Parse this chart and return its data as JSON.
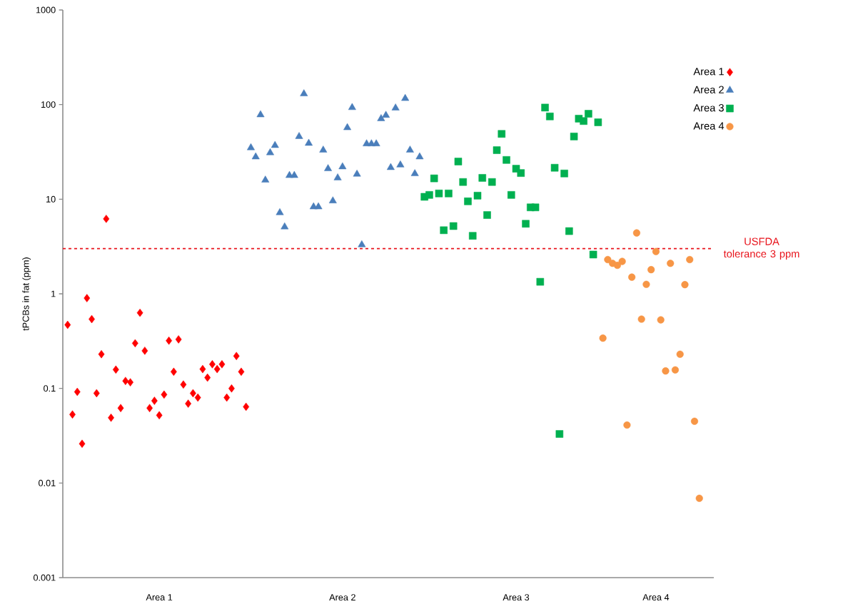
{
  "chart_data": {
    "type": "scatter",
    "ylabel": "tPCBs in fat (ppm)",
    "log": true,
    "ylim": [
      0.001,
      1000
    ],
    "yticks": [
      0.001,
      0.01,
      0.1,
      1,
      10,
      100,
      1000
    ],
    "categories": [
      null,
      null,
      null,
      null,
      null,
      null,
      null,
      null,
      null,
      null,
      null,
      null,
      null,
      null,
      null,
      null,
      null,
      null,
      null,
      "Area 1",
      null,
      null,
      null,
      null,
      null,
      null,
      null,
      null,
      null,
      null,
      null,
      null,
      null,
      null,
      null,
      null,
      null,
      null,
      null,
      null,
      null,
      null,
      null,
      null,
      null,
      null,
      null,
      null,
      null,
      null,
      null,
      null,
      null,
      null,
      null,
      null,
      null,
      "Area 2",
      null,
      null,
      null,
      null,
      null,
      null,
      null,
      null,
      null,
      null,
      null,
      null,
      null,
      null,
      null,
      null,
      null,
      null,
      null,
      null,
      null,
      null,
      null,
      null,
      null,
      null,
      null,
      null,
      null,
      null,
      null,
      null,
      null,
      null,
      null,
      "Area 3",
      null,
      null,
      null,
      null,
      null,
      null,
      null,
      null,
      null,
      null,
      null,
      null,
      null,
      null,
      null,
      null,
      null,
      null,
      null,
      null,
      null,
      null,
      null,
      null,
      null,
      null,
      null,
      null,
      "Area 4",
      null,
      null,
      null,
      null,
      null,
      null,
      null,
      null,
      null
    ],
    "legend": "top right",
    "ref_lines": [
      {
        "axis": "y",
        "value": 3,
        "label": "USFDA tolerance 3 ppm",
        "color": "#e8141c",
        "line_style": "dashed"
      }
    ],
    "series": [
      {
        "name": "Area 1",
        "color": "#ff0000",
        "marker": "diamond",
        "values": [
          0.47,
          0.053,
          0.092,
          0.026,
          0.9,
          0.54,
          0.089,
          0.23,
          6.2,
          0.049,
          0.158,
          0.062,
          0.12,
          0.116,
          0.3,
          0.63,
          0.25,
          0.062,
          0.074,
          0.052,
          0.086,
          0.32,
          0.15,
          0.33,
          0.11,
          0.069,
          0.089,
          0.08,
          0.16,
          0.13,
          0.18,
          0.16,
          0.18,
          0.08,
          0.1,
          0.22,
          0.15,
          0.064,
          null,
          null,
          null,
          null,
          null,
          null,
          null,
          null,
          null,
          null,
          null,
          null,
          null,
          null,
          null,
          null,
          null,
          null,
          null,
          null,
          null,
          null,
          null,
          null,
          null,
          null,
          null,
          null,
          null,
          null,
          null,
          null,
          null,
          null,
          null,
          null,
          null,
          null,
          null,
          null,
          null,
          null,
          null,
          null,
          null,
          null,
          null,
          null,
          null,
          null,
          null,
          null,
          null,
          null,
          null,
          null,
          null,
          null,
          null,
          null,
          null,
          null,
          null,
          null,
          null,
          null,
          null,
          null,
          null,
          null,
          null,
          null,
          null,
          null,
          null,
          null,
          null,
          null,
          null,
          null,
          null,
          null,
          null,
          null,
          null,
          null,
          null,
          null,
          null,
          null,
          null,
          null,
          null,
          null
        ]
      },
      {
        "name": "Area 2",
        "color": "#4a7ebb",
        "marker": "triangle",
        "values": [
          null,
          null,
          null,
          null,
          null,
          null,
          null,
          null,
          null,
          null,
          null,
          null,
          null,
          null,
          null,
          null,
          null,
          null,
          null,
          null,
          null,
          null,
          null,
          null,
          null,
          null,
          null,
          null,
          null,
          null,
          null,
          null,
          null,
          null,
          null,
          null,
          null,
          null,
          35,
          28,
          78,
          15.9,
          31,
          37,
          7.2,
          5.1,
          17.8,
          17.8,
          46,
          130,
          39,
          8.3,
          8.3,
          33,
          21,
          9.6,
          16.8,
          22,
          57,
          93,
          18.4,
          3.3,
          38.5,
          38.5,
          38.5,
          71,
          77,
          21.6,
          92,
          23,
          116,
          33,
          18.6,
          28,
          null,
          null,
          null,
          null,
          null,
          null,
          null,
          null,
          null,
          null,
          null,
          null,
          null,
          null,
          null,
          null,
          null,
          null,
          null,
          null,
          null,
          null,
          null,
          null,
          null,
          null,
          null,
          null,
          null,
          null,
          null,
          null,
          null,
          null,
          null,
          null,
          null,
          null,
          null,
          null,
          null,
          null,
          null,
          null,
          null,
          null,
          null,
          null,
          null,
          null,
          null,
          null,
          null,
          null,
          null,
          null,
          null,
          null
        ]
      },
      {
        "name": "Area 3",
        "color": "#00b050",
        "marker": "square",
        "values": [
          null,
          null,
          null,
          null,
          null,
          null,
          null,
          null,
          null,
          null,
          null,
          null,
          null,
          null,
          null,
          null,
          null,
          null,
          null,
          null,
          null,
          null,
          null,
          null,
          null,
          null,
          null,
          null,
          null,
          null,
          null,
          null,
          null,
          null,
          null,
          null,
          null,
          null,
          null,
          null,
          null,
          null,
          null,
          null,
          null,
          null,
          null,
          null,
          null,
          null,
          null,
          null,
          null,
          null,
          null,
          null,
          null,
          null,
          null,
          null,
          null,
          null,
          null,
          null,
          null,
          null,
          null,
          null,
          null,
          null,
          null,
          null,
          null,
          null,
          10.6,
          11.1,
          16.6,
          11.5,
          4.7,
          11.5,
          5.2,
          25,
          15.2,
          9.5,
          4.1,
          10.9,
          16.8,
          6.8,
          15.2,
          33,
          49,
          26,
          11.1,
          21,
          18.9,
          5.5,
          8.2,
          8.2,
          1.34,
          93,
          75,
          21.5,
          0.033,
          18.7,
          4.6,
          46,
          71,
          67,
          80,
          2.6,
          65,
          null,
          null,
          null,
          null,
          null,
          null,
          null,
          null,
          null,
          null,
          null,
          null,
          null,
          null,
          null,
          null,
          null,
          null,
          null,
          null,
          null
        ]
      },
      {
        "name": "Area 4",
        "color": "#f79646",
        "marker": "circle",
        "values": [
          null,
          null,
          null,
          null,
          null,
          null,
          null,
          null,
          null,
          null,
          null,
          null,
          null,
          null,
          null,
          null,
          null,
          null,
          null,
          null,
          null,
          null,
          null,
          null,
          null,
          null,
          null,
          null,
          null,
          null,
          null,
          null,
          null,
          null,
          null,
          null,
          null,
          null,
          null,
          null,
          null,
          null,
          null,
          null,
          null,
          null,
          null,
          null,
          null,
          null,
          null,
          null,
          null,
          null,
          null,
          null,
          null,
          null,
          null,
          null,
          null,
          null,
          null,
          null,
          null,
          null,
          null,
          null,
          null,
          null,
          null,
          null,
          null,
          null,
          null,
          null,
          null,
          null,
          null,
          null,
          null,
          null,
          null,
          null,
          null,
          null,
          null,
          null,
          null,
          null,
          null,
          null,
          null,
          null,
          null,
          null,
          null,
          null,
          null,
          null,
          null,
          null,
          null,
          null,
          null,
          null,
          null,
          null,
          null,
          null,
          null,
          0.34,
          2.3,
          2.1,
          2.0,
          2.2,
          0.041,
          1.5,
          4.4,
          0.54,
          1.26,
          1.8,
          2.8,
          0.53,
          0.153,
          2.1,
          0.157,
          0.23,
          1.25,
          2.3,
          0.045,
          0.0069
        ]
      }
    ]
  }
}
